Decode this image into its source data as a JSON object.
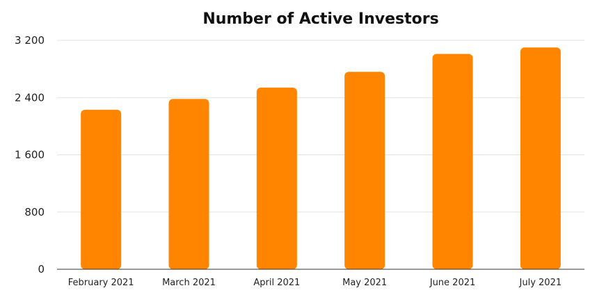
{
  "chart_data": {
    "type": "bar",
    "title": "Number of Active Investors",
    "categories": [
      "February 2021",
      "March 2021",
      "April 2021",
      "May 2021",
      "June 2021",
      "July 2021"
    ],
    "values": [
      2230,
      2380,
      2540,
      2760,
      3010,
      3100
    ],
    "ylim": [
      0,
      3200
    ],
    "yticks": [
      0,
      800,
      1600,
      2400,
      3200
    ],
    "ytick_labels": [
      "0",
      "800",
      "1 600",
      "2 400",
      "3 200"
    ],
    "xlabel": "",
    "ylabel": "",
    "grid": true,
    "colors": {
      "bar": "#ff8400"
    }
  }
}
